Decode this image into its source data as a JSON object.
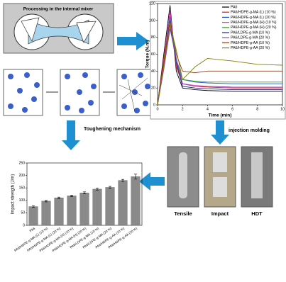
{
  "mixer": {
    "title": "Processing in the internal mixer"
  },
  "labels": {
    "injection": "injection molding",
    "toughening": "Toughening mechanism"
  },
  "specimens": [
    "Tensile",
    "Impact",
    "HDT"
  ],
  "chart_data": [
    {
      "type": "line",
      "xlabel": "Time (min)",
      "ylabel": "Torque (N.m)",
      "x": [
        0,
        0.5,
        1,
        1.5,
        2,
        3,
        4,
        6,
        8,
        10
      ],
      "xlim": [
        0,
        10
      ],
      "xticks": [
        0,
        2,
        4,
        6,
        8,
        10
      ],
      "ylim": [
        0,
        120
      ],
      "yticks": [
        0,
        20,
        40,
        60,
        80,
        100,
        120
      ],
      "series": [
        {
          "name": "PA6",
          "color": "#000000",
          "values": [
            0,
            60,
            118,
            40,
            20,
            18,
            17,
            16,
            16,
            16
          ]
        },
        {
          "name": "PA6/HDPE-g-MA (L) (10 %)",
          "color": "#e41a1c",
          "values": [
            0,
            55,
            110,
            45,
            25,
            22,
            21,
            20,
            20,
            20
          ]
        },
        {
          "name": "PA6/HDPE-g-MA (L) (20 %)",
          "color": "#1f4fe0",
          "values": [
            0,
            50,
            105,
            50,
            30,
            27,
            26,
            25,
            25,
            25
          ]
        },
        {
          "name": "PA6/HDPE-g-MA (H) (10 %)",
          "color": "#e040c0",
          "values": [
            0,
            52,
            112,
            48,
            25,
            23,
            22,
            21,
            21,
            21
          ]
        },
        {
          "name": "PA6/HDPE-g-MA (H) (20 %)",
          "color": "#2ca02c",
          "values": [
            0,
            48,
            100,
            55,
            30,
            28,
            27,
            27,
            27,
            27
          ]
        },
        {
          "name": "PA6/LDPE-g-MA (10 %)",
          "color": "#1a237e",
          "values": [
            0,
            45,
            95,
            50,
            22,
            20,
            19,
            18,
            18,
            18
          ]
        },
        {
          "name": "PA6/LDPE-g-MA (20 %)",
          "color": "#8e44ad",
          "values": [
            0,
            42,
            90,
            55,
            25,
            22,
            22,
            21,
            21,
            21
          ]
        },
        {
          "name": "PA6/HDPE-g-AA (10 %)",
          "color": "#8b3a1a",
          "values": [
            0,
            50,
            100,
            60,
            40,
            38,
            40,
            40,
            40,
            40
          ]
        },
        {
          "name": "PA6/HDPE-g-AA (20 %)",
          "color": "#808000",
          "values": [
            0,
            45,
            95,
            65,
            30,
            45,
            55,
            52,
            48,
            47
          ]
        }
      ]
    },
    {
      "type": "bar",
      "ylabel": "Impact strength (J/m)",
      "categories": [
        "PA6",
        "PA6/HDPE-g-MA (L) (10 %)",
        "PA6/HDPE-g-MA (L) (20 %)",
        "PA6/HDPE-g-MA (H) (10 %)",
        "PA6/HDPE-g-MA (H) (20 %)",
        "PA6/LDPE-g-MA (10 %)",
        "PA6/LDPE-g-MA (20 %)",
        "PA6/HDPE-g-AA (10 %)",
        "PA6/HDPE-g-AA (20 %)"
      ],
      "values": [
        75,
        97,
        110,
        118,
        130,
        145,
        152,
        180,
        195
      ],
      "errors": [
        3,
        3,
        3,
        3,
        4,
        4,
        4,
        4,
        10
      ],
      "color": "#8a8a8a",
      "ylim": [
        0,
        250
      ],
      "yticks": [
        0,
        50,
        100,
        150,
        200,
        250
      ]
    }
  ]
}
